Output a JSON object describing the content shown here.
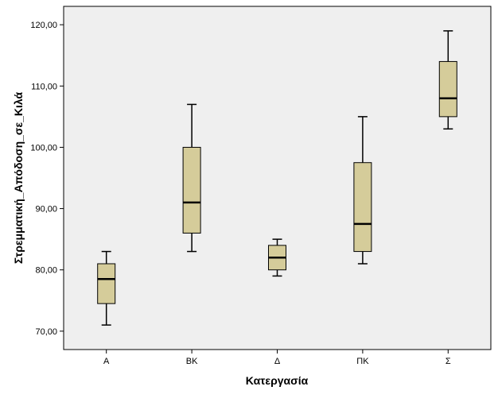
{
  "chart_data": {
    "type": "boxplot",
    "xlabel": "Κατεργασία",
    "ylabel": "Στρεμματική_Απόδοση_σε_Κιλά",
    "ylim": [
      67,
      123
    ],
    "yticks": [
      70,
      80,
      90,
      100,
      110,
      120
    ],
    "ytick_labels": [
      "70,00",
      "80,00",
      "90,00",
      "100,00",
      "110,00",
      "120,00"
    ],
    "categories": [
      "Α",
      "ΒΚ",
      "Δ",
      "ΠΚ",
      "Σ"
    ],
    "boxes": [
      {
        "category": "Α",
        "min": 71,
        "q1": 74.5,
        "median": 78.5,
        "q3": 81,
        "max": 83
      },
      {
        "category": "ΒΚ",
        "min": 83,
        "q1": 86,
        "median": 91,
        "q3": 100,
        "max": 107
      },
      {
        "category": "Δ",
        "min": 79,
        "q1": 80,
        "median": 82,
        "q3": 84,
        "max": 85
      },
      {
        "category": "ΠΚ",
        "min": 81,
        "q1": 83,
        "median": 87.5,
        "q3": 97.5,
        "max": 105
      },
      {
        "category": "Σ",
        "min": 103,
        "q1": 105,
        "median": 108,
        "q3": 114,
        "max": 119
      }
    ],
    "grid": false,
    "colors": {
      "plot_background": "#efefef",
      "box_fill": "#d5cc9a",
      "stroke": "#000000"
    }
  }
}
